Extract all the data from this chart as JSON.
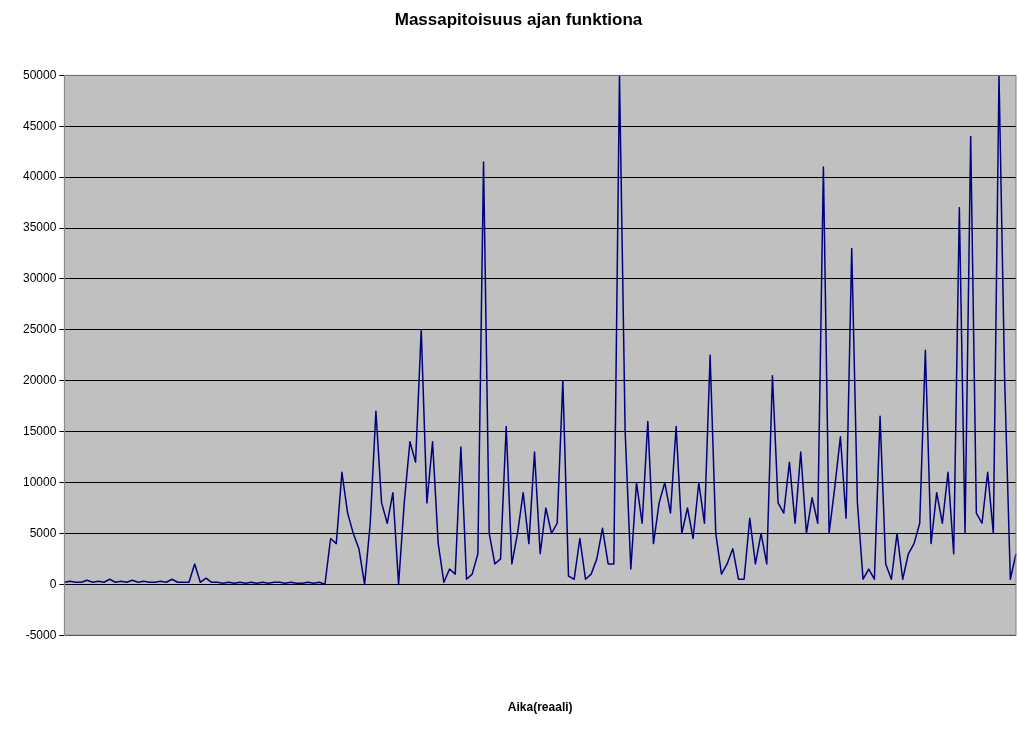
{
  "chart_data": {
    "type": "line",
    "title": "Massapitoisuus ajan funktiona",
    "xlabel": "Aika(reaali)",
    "categories": [
      null,
      null,
      null,
      null,
      null,
      null,
      null,
      null,
      null,
      null,
      null,
      null,
      null,
      null,
      null,
      null,
      null,
      null,
      null,
      null,
      null,
      null,
      null,
      null,
      null,
      null,
      null,
      null,
      null,
      null,
      null,
      null,
      null,
      null,
      null,
      null,
      null,
      null,
      null,
      null,
      null,
      null,
      null,
      null,
      null,
      null,
      null,
      null,
      null,
      null,
      null,
      null,
      null,
      null,
      null,
      null,
      null,
      null,
      null,
      null,
      null,
      null,
      null,
      null,
      null,
      null,
      null,
      null,
      null,
      null,
      null,
      null,
      null,
      null,
      null,
      null,
      null,
      null,
      null,
      null,
      null,
      null,
      null,
      null,
      null,
      null,
      null,
      null,
      null,
      null,
      null,
      null,
      null,
      null,
      null,
      null,
      null,
      null,
      null,
      null,
      null,
      null,
      null,
      null,
      null,
      null,
      null,
      null,
      null,
      null,
      null,
      null,
      null,
      null,
      null,
      null,
      null,
      null,
      null,
      null,
      null,
      null,
      null,
      null,
      null,
      null,
      null,
      null,
      null,
      null,
      null,
      null,
      null,
      null,
      null,
      null,
      null,
      null,
      null,
      null,
      null,
      null,
      null,
      null,
      null,
      null,
      null,
      null,
      null,
      null,
      null,
      null,
      null,
      null,
      null,
      null,
      null,
      null,
      null,
      null,
      null,
      null,
      null,
      null,
      null,
      null,
      null,
      null,
      null
    ],
    "series": [
      {
        "color": "#000080",
        "values": [
          200,
          300,
          200,
          200,
          400,
          200,
          300,
          200,
          500,
          200,
          300,
          200,
          400,
          200,
          300,
          200,
          200,
          300,
          200,
          500,
          200,
          200,
          200,
          2000,
          200,
          600,
          200,
          200,
          100,
          200,
          100,
          200,
          100,
          200,
          100,
          200,
          100,
          200,
          200,
          100,
          200,
          100,
          100,
          200,
          100,
          200,
          0,
          4500,
          4000,
          11000,
          7000,
          5000,
          3500,
          0,
          6000,
          17000,
          8000,
          6000,
          9000,
          0,
          8000,
          14000,
          12000,
          25000,
          8000,
          14000,
          4000,
          200,
          1500,
          1000,
          13500,
          500,
          1000,
          3000,
          41500,
          5000,
          2000,
          2500,
          15500,
          2000,
          5000,
          9000,
          4000,
          13000,
          3000,
          7500,
          5000,
          6000,
          20000,
          800,
          500,
          4500,
          500,
          1000,
          2500,
          5500,
          2000,
          2000,
          50000,
          15000,
          1500,
          10000,
          6000,
          16000,
          4000,
          8000,
          10000,
          7000,
          15500,
          5000,
          7500,
          4500,
          10000,
          6000,
          22500,
          5000,
          1000,
          2000,
          3500,
          500,
          500,
          6500,
          2000,
          5000,
          2000,
          20500,
          8000,
          7000,
          12000,
          6000,
          13000,
          5000,
          8500,
          6000,
          41000,
          5000,
          9500,
          14500,
          6500,
          33000,
          8000,
          500,
          1500,
          500,
          16500,
          2000,
          500,
          5000,
          500,
          3000,
          4000,
          6000,
          23000,
          4000,
          9000,
          6000,
          11000,
          3000,
          37000,
          5000,
          44000,
          7000,
          6000,
          11000,
          5000,
          50000,
          20000,
          500,
          3000
        ]
      }
    ],
    "ylim": [
      -5000,
      50000
    ],
    "yticks": [
      -5000,
      0,
      5000,
      10000,
      15000,
      20000,
      25000,
      30000,
      35000,
      40000,
      45000,
      50000
    ],
    "grid": "y",
    "legend": false,
    "marker": "none",
    "line_style": "solid"
  }
}
